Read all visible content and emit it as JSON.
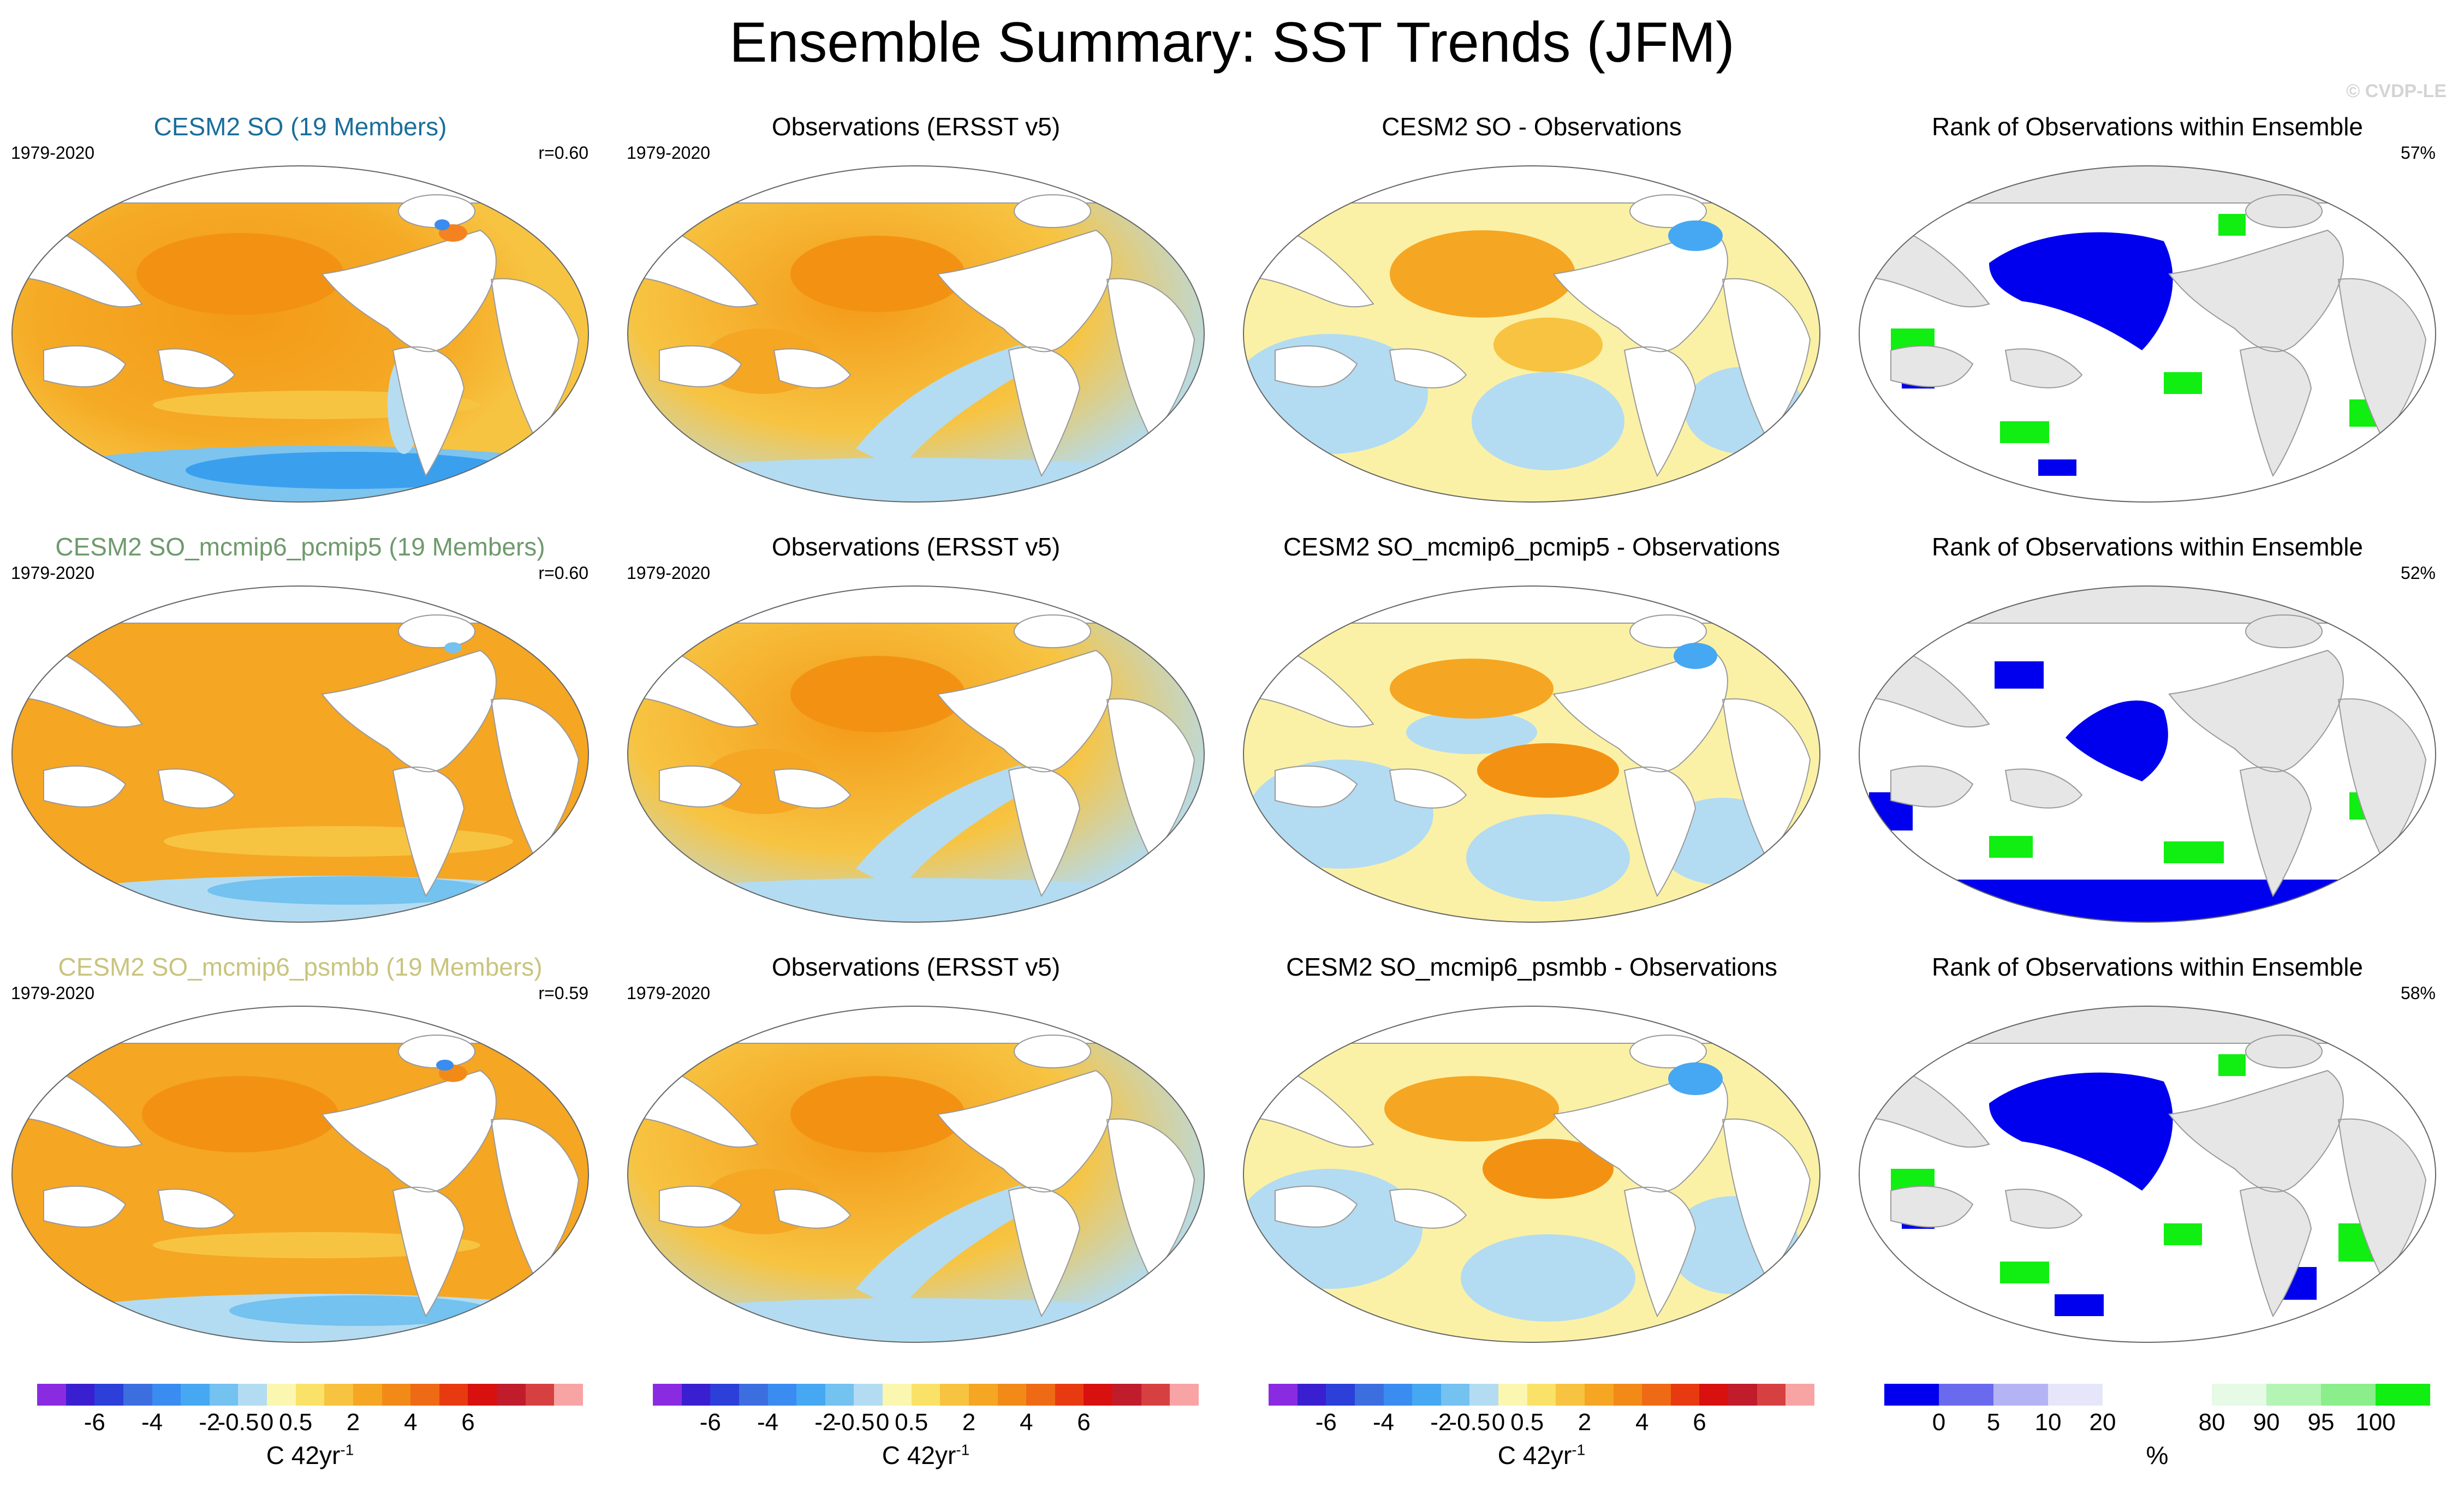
{
  "title": "Ensemble Summary: SST Trends (JFM)",
  "watermark": "© CVDP-LE",
  "colors": {
    "land": "#ffffff",
    "land_rank": "#e6e6e6",
    "ocean_base": "#f4a820",
    "title_row1": "#1a6e9c",
    "title_row2": "#6f9a6d",
    "title_row3": "#c9c47e"
  },
  "rows": [
    {
      "ensemble": {
        "title": "CESM2 SO (19 Members)",
        "years": "1979-2020",
        "corr": "r=0.60"
      },
      "observations": {
        "title": "Observations (ERSST v5)",
        "years": "1979-2020"
      },
      "difference": {
        "title": "CESM2 SO - Observations"
      },
      "rank": {
        "title": "Rank of Observations within Ensemble",
        "pct": "57%"
      }
    },
    {
      "ensemble": {
        "title": "CESM2 SO_mcmip6_pcmip5 (19 Members)",
        "years": "1979-2020",
        "corr": "r=0.60"
      },
      "observations": {
        "title": "Observations (ERSST v5)",
        "years": "1979-2020"
      },
      "difference": {
        "title": "CESM2 SO_mcmip6_pcmip5 - Observations"
      },
      "rank": {
        "title": "Rank of Observations within Ensemble",
        "pct": "52%"
      }
    },
    {
      "ensemble": {
        "title": "CESM2 SO_mcmip6_psmbb (19 Members)",
        "years": "1979-2020",
        "corr": "r=0.59"
      },
      "observations": {
        "title": "Observations (ERSST v5)",
        "years": "1979-2020"
      },
      "difference": {
        "title": "CESM2 SO_mcmip6_psmbb - Observations"
      },
      "rank": {
        "title": "Rank of Observations within Ensemble",
        "pct": "58%"
      }
    }
  ],
  "trend_legend": {
    "colors": [
      "#8a2be2",
      "#3a1fd0",
      "#2c3fd8",
      "#3d6ee0",
      "#3a8cf0",
      "#46a8f2",
      "#73c2f0",
      "#b3dcf2",
      "#fbf6b0",
      "#fae268",
      "#f7c340",
      "#f5a623",
      "#f28a18",
      "#ee6a14",
      "#e83a10",
      "#d81010",
      "#c01c2c",
      "#d74040",
      "#f8a4a4"
    ],
    "ticks": [
      "-6",
      "-4",
      "-2",
      "-0.5",
      "0",
      "0.5",
      "2",
      "4",
      "6"
    ],
    "unit": "C 42yr",
    "unit_exp": "-1"
  },
  "rank_legend": {
    "colors": [
      "#0000ee",
      "#6a6aee",
      "#b4b4f4",
      "#e6e6fa",
      "#ffffff",
      "#ffffff",
      "#e6fae6",
      "#b4f4b4",
      "#8aee8a",
      "#11ee11"
    ],
    "ticks": [
      "0",
      "5",
      "10",
      "20",
      "80",
      "90",
      "95",
      "100"
    ],
    "unit": "%"
  }
}
